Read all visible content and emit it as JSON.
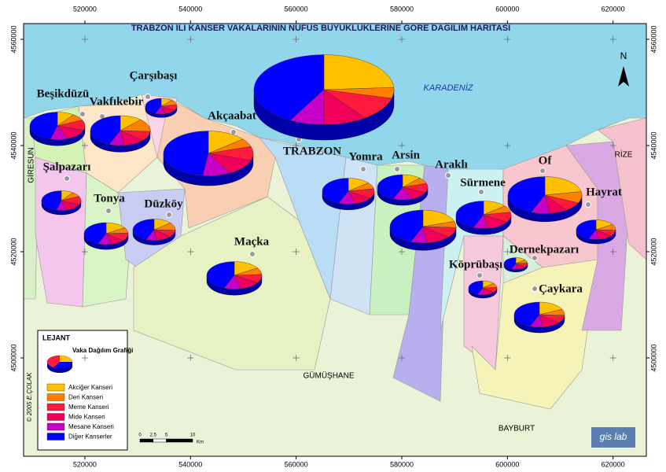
{
  "title": "TRABZON İLİ KANSER VAKALARININ NÜFUS BÜYÜKLÜKLERİNE GÖRE DAĞILIM HARİTASI",
  "axes": {
    "xlim": [
      508400,
      626300
    ],
    "ylim": [
      4481480,
      4562960
    ],
    "xticks": [
      520000,
      540000,
      560000,
      580000,
      600000,
      620000
    ],
    "yticks": [
      4500000,
      4520000,
      4540000,
      4560000
    ]
  },
  "places": {
    "sea": "KARADENİZ",
    "west": "GİRESUN",
    "east": "RİZE",
    "south": "GÜMÜŞHANE",
    "southeast": "BAYBURT"
  },
  "districts": [
    {
      "name": "TRABZON",
      "shares": [
        24,
        5,
        11,
        10,
        8,
        42
      ]
    },
    {
      "name": "Akçaabat",
      "shares": [
        14,
        6,
        10,
        12,
        10,
        48
      ]
    },
    {
      "name": "Beşikdüzü",
      "shares": [
        10,
        8,
        12,
        14,
        10,
        46
      ]
    },
    {
      "name": "Vakfıkebir",
      "shares": [
        12,
        14,
        10,
        12,
        8,
        44
      ]
    },
    {
      "name": "Çarşıbaşı",
      "shares": [
        12,
        10,
        12,
        12,
        10,
        44
      ]
    },
    {
      "name": "Şalpazarı",
      "shares": [
        10,
        8,
        14,
        14,
        8,
        46
      ]
    },
    {
      "name": "Tonya",
      "shares": [
        16,
        8,
        12,
        10,
        10,
        44
      ]
    },
    {
      "name": "Düzköy",
      "shares": [
        14,
        12,
        10,
        12,
        8,
        44
      ]
    },
    {
      "name": "Maçka",
      "shares": [
        16,
        8,
        10,
        12,
        10,
        44
      ]
    },
    {
      "name": "Yomra",
      "shares": [
        14,
        8,
        12,
        12,
        10,
        44
      ]
    },
    {
      "name": "Arsin",
      "shares": [
        12,
        8,
        12,
        12,
        12,
        44
      ]
    },
    {
      "name": "Araklı",
      "shares": [
        20,
        6,
        10,
        12,
        8,
        44
      ]
    },
    {
      "name": "Sürmene",
      "shares": [
        14,
        8,
        12,
        14,
        8,
        44
      ]
    },
    {
      "name": "Of",
      "shares": [
        22,
        10,
        8,
        8,
        8,
        44
      ]
    },
    {
      "name": "Hayrat",
      "shares": [
        16,
        10,
        10,
        12,
        8,
        44
      ]
    },
    {
      "name": "Köprübaşı",
      "shares": [
        14,
        10,
        12,
        12,
        8,
        44
      ]
    },
    {
      "name": "Dernekpazarı",
      "shares": [
        14,
        10,
        12,
        12,
        8,
        44
      ]
    },
    {
      "name": "Çaykara",
      "shares": [
        18,
        8,
        10,
        12,
        8,
        44
      ]
    }
  ],
  "legend": {
    "title": "LEJANT",
    "subtitle": "Vaka Dağılım Grafiği",
    "items": [
      {
        "name": "Akciğer Kanseri",
        "color": "#ffc000"
      },
      {
        "name": "Deri Kanseri",
        "color": "#ff8000"
      },
      {
        "name": "Meme Kanseri",
        "color": "#ff1a3c"
      },
      {
        "name": "Mide Kanseri",
        "color": "#f0005a"
      },
      {
        "name": "Mesane Kanseri",
        "color": "#c600c6"
      },
      {
        "name": "Diğer Kanserler",
        "color": "#0000ff"
      }
    ],
    "scale": [
      0,
      2.5,
      5,
      10
    ],
    "scale_unit": "Km"
  },
  "north": "N",
  "credit": "© 2005 E.ÇOLAK",
  "logo": "gis lab"
}
